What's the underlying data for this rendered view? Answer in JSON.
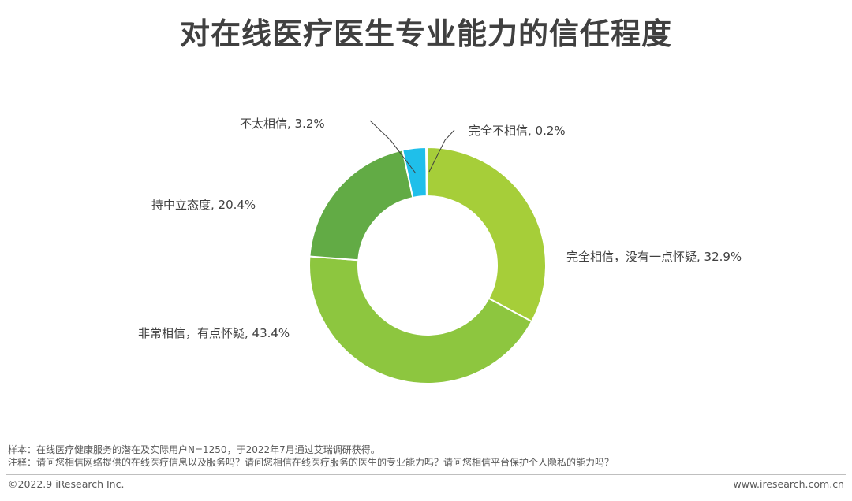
{
  "title": "对在线医疗医生专业能力的信任程度",
  "chart_data": {
    "type": "pie",
    "variant": "donut",
    "title": "对在线医疗医生专业能力的信任程度",
    "unit": "%",
    "slices": [
      {
        "label": "完全相信，没有一点怀疑",
        "value": 32.9,
        "display": "完全相信，没有一点怀疑, 32.9%",
        "color": "#A6CE39"
      },
      {
        "label": "非常相信，有点怀疑",
        "value": 43.4,
        "display": "非常相信，有点怀疑, 43.4%",
        "color": "#8DC63F"
      },
      {
        "label": "持中立态度",
        "value": 20.4,
        "display": "持中立态度, 20.4%",
        "color": "#62AB45"
      },
      {
        "label": "不太相信",
        "value": 3.2,
        "display": "不太相信, 3.2%",
        "color": "#1FBFEA"
      },
      {
        "label": "完全不相信",
        "value": 0.2,
        "display": "完全不相信, 0.2%",
        "color": "#1C75BC"
      }
    ]
  },
  "notes": {
    "sample": "样本：在线医疗健康服务的潜在及实际用户N=1250，于2022年7月通过艾瑞调研获得。",
    "annotation": "注释：请问您相信网络提供的在线医疗信息以及服务吗？请问您相信在线医疗服务的医生的专业能力吗？请问您相信平台保护个人隐私的能力吗？"
  },
  "footer": {
    "copyright": "©2022.9 iResearch Inc.",
    "website": "www.iresearch.com.cn"
  }
}
